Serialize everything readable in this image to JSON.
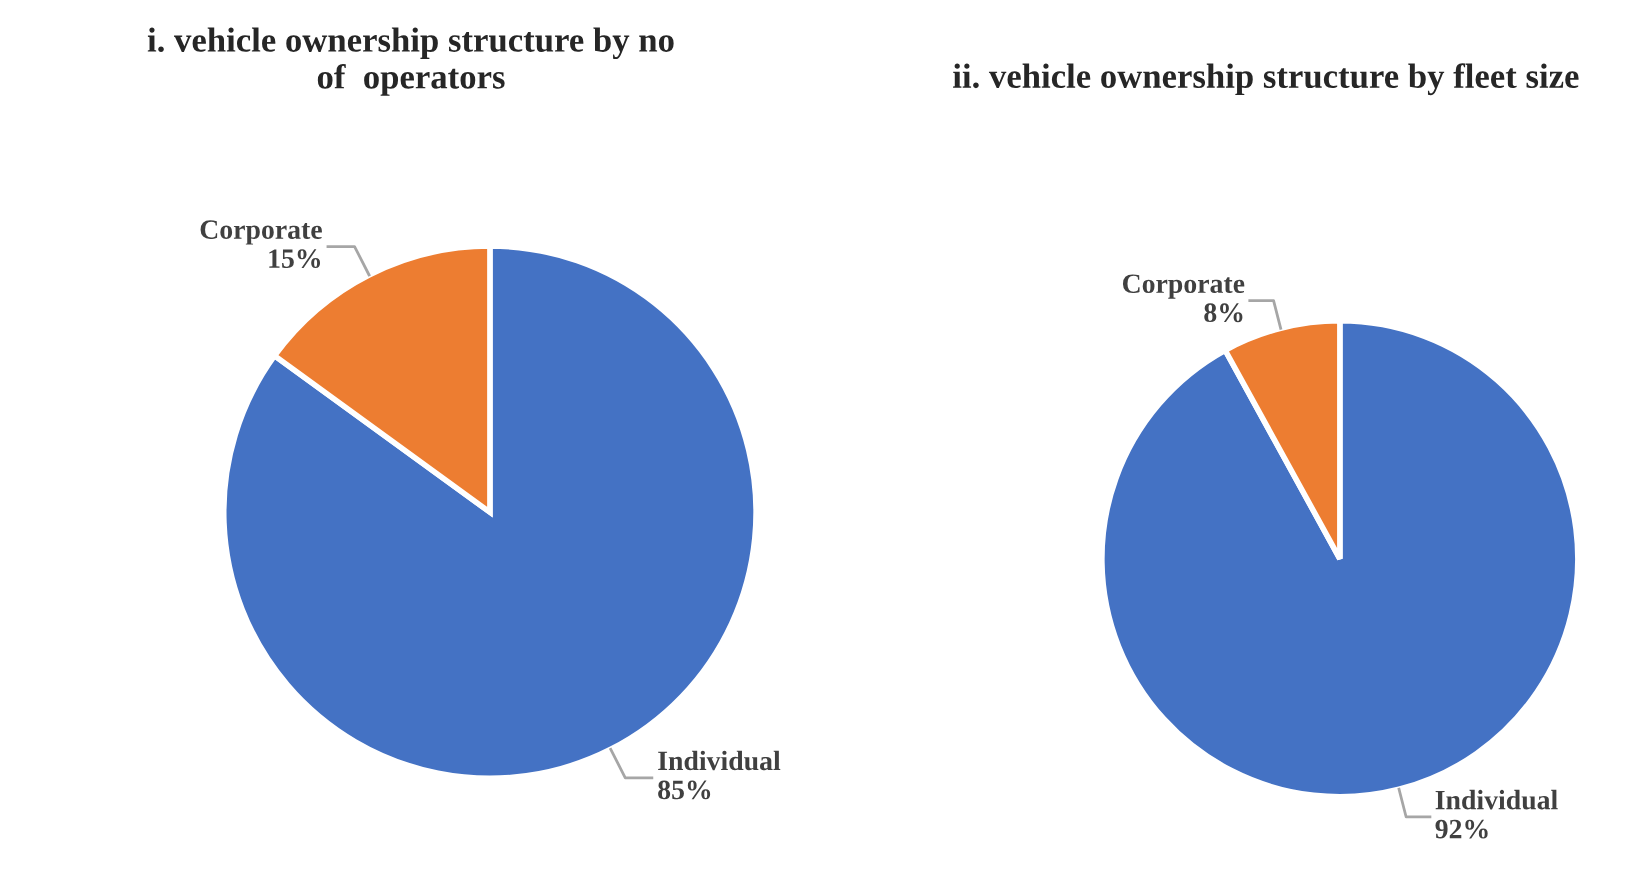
{
  "chart_data": [
    {
      "type": "pie",
      "title": "i. vehicle ownership structure by no\nof  operators",
      "categories": [
        "Individual",
        "Corporate"
      ],
      "values": [
        85,
        15
      ],
      "colors": [
        "#4472c4",
        "#ed7d31"
      ],
      "value_labels": [
        "85%",
        "15%"
      ]
    },
    {
      "type": "pie",
      "title": "ii. vehicle ownership structure by fleet size",
      "categories": [
        "Individual",
        "Corporate"
      ],
      "values": [
        92,
        8
      ],
      "colors": [
        "#4472c4",
        "#ed7d31"
      ],
      "value_labels": [
        "92%",
        "8%"
      ]
    }
  ]
}
